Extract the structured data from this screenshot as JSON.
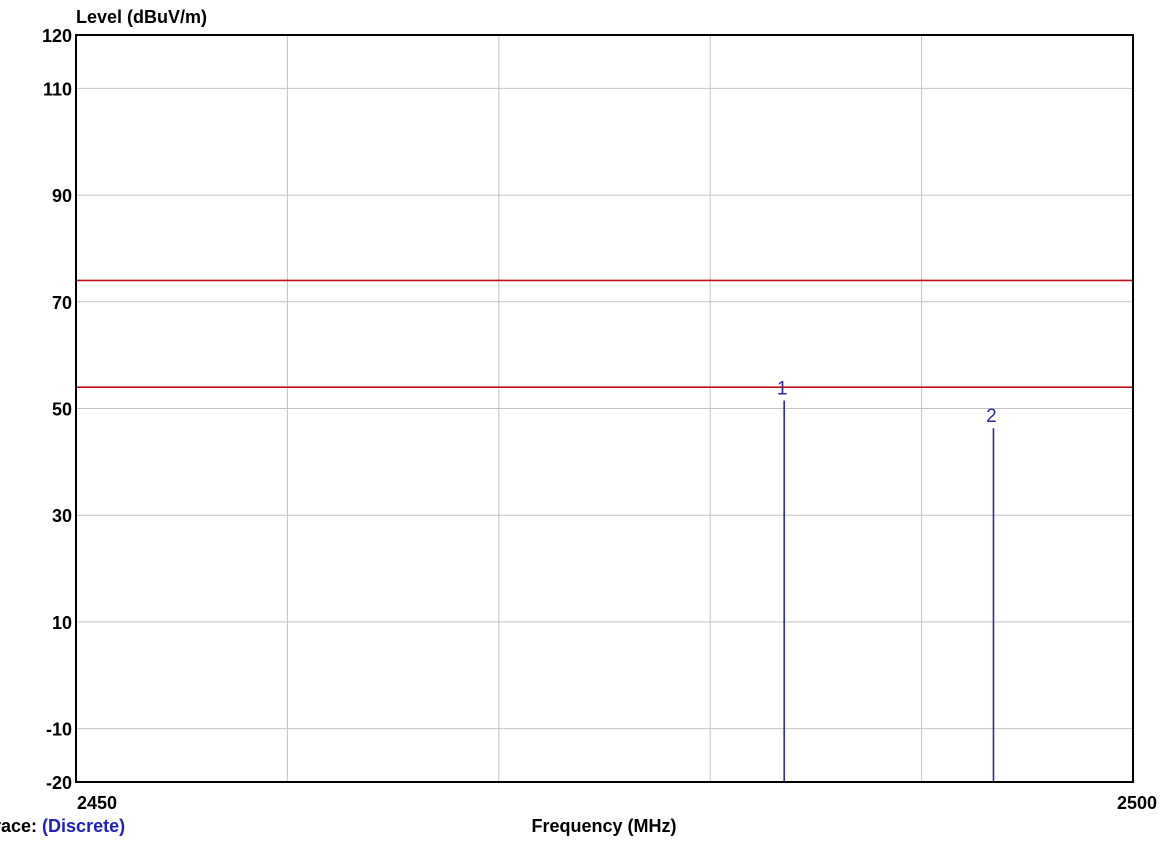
{
  "chart_data": {
    "type": "line",
    "title": "",
    "ylabel": "Level (dBuV/m)",
    "xlabel": "Frequency (MHz)",
    "xlim": [
      2450,
      2500
    ],
    "ylim": [
      -20,
      120
    ],
    "x_ticks": [
      "2450",
      "2500"
    ],
    "y_ticks": [
      120,
      110,
      90,
      70,
      50,
      30,
      10,
      -10,
      -20
    ],
    "x_gridlines": [
      2460,
      2470,
      2480,
      2490
    ],
    "grid": true,
    "limit_lines": [
      {
        "y": 74,
        "color": "#c0101a"
      },
      {
        "y": 54,
        "color": "#c0101a"
      }
    ],
    "markers": [
      {
        "label": "1",
        "x": 2483.5,
        "y": 51.5,
        "color": "#2b2b9a"
      },
      {
        "label": "2",
        "x": 2493.4,
        "y": 46.3,
        "color": "#2b2b9a"
      }
    ]
  },
  "footer": {
    "trace_prefix": "race:",
    "trace_value": "(Discrete)"
  }
}
